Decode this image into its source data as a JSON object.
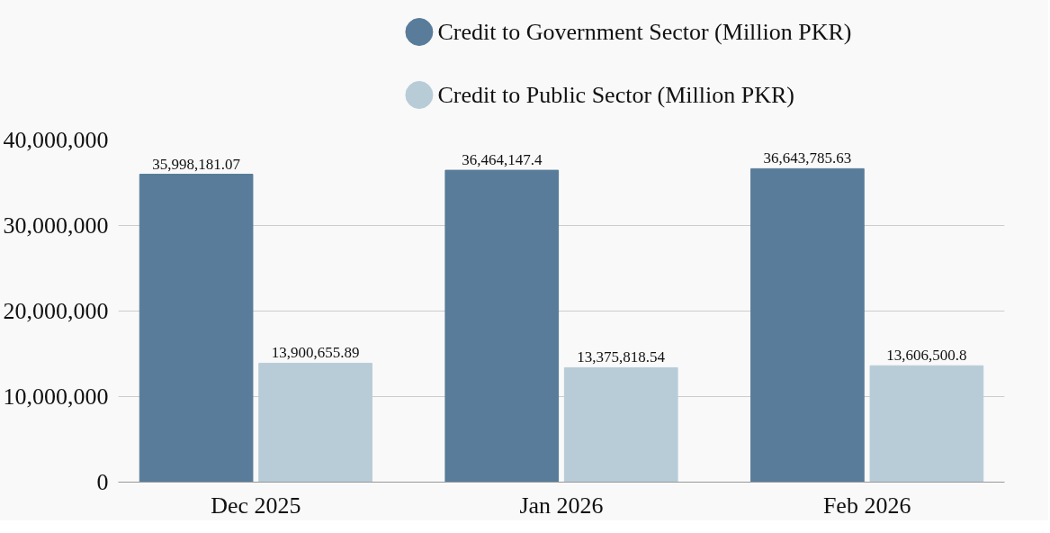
{
  "chart_data": {
    "type": "bar",
    "categories": [
      "Dec 2025",
      "Jan 2026",
      "Feb 2026"
    ],
    "series": [
      {
        "name": "Credit to Government Sector (Million PKR)",
        "color": "#587c99",
        "values": [
          35998181.07,
          36464147.4,
          36643785.63
        ],
        "value_labels": [
          "35,998,181.07",
          "36,464,147.4",
          "36,643,785.63"
        ]
      },
      {
        "name": "Credit to Public Sector (Million PKR)",
        "color": "#b8ccd7",
        "values": [
          13900655.89,
          13375818.54,
          13606500.8
        ],
        "value_labels": [
          "13,900,655.89",
          "13,375,818.54",
          "13,606,500.8"
        ]
      }
    ],
    "ylim": [
      0,
      40000000
    ],
    "yticks": [
      {
        "value": 0,
        "label": "0"
      },
      {
        "value": 10000000,
        "label": "10,000,000"
      },
      {
        "value": 20000000,
        "label": "20,000,000"
      },
      {
        "value": 30000000,
        "label": "30,000,000"
      },
      {
        "value": 40000000,
        "label": "40,000,000"
      }
    ],
    "grid": "y",
    "legend": "top"
  }
}
